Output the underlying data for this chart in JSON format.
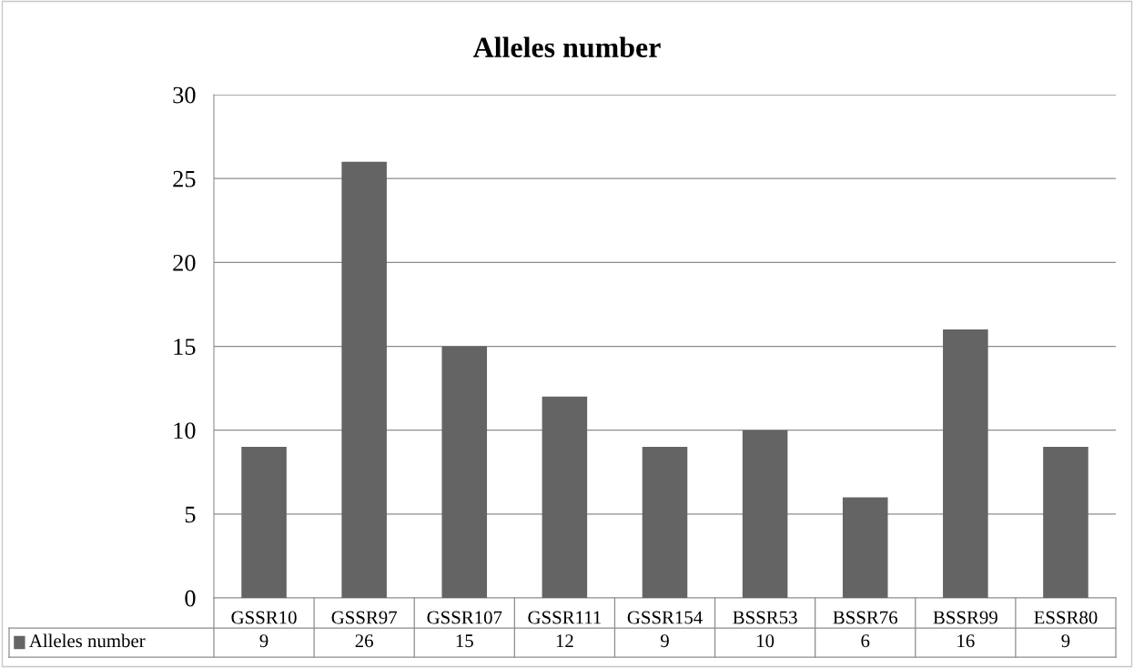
{
  "chart_data": {
    "type": "bar",
    "title": "Alleles number",
    "categories": [
      "GSSR10",
      "GSSR97",
      "GSSR107",
      "GSSR111",
      "GSSR154",
      "BSSR53",
      "BSSR76",
      "BSSR99",
      "ESSR80"
    ],
    "series": [
      {
        "name": "Alleles number",
        "color": "#646464",
        "values": [
          9,
          26,
          15,
          12,
          9,
          10,
          6,
          16,
          9
        ]
      }
    ],
    "ylim": [
      0,
      30
    ],
    "yticks": [
      0,
      5,
      10,
      15,
      20,
      25,
      30
    ],
    "grid": "y",
    "legend": "bottom",
    "data_labels": true
  }
}
